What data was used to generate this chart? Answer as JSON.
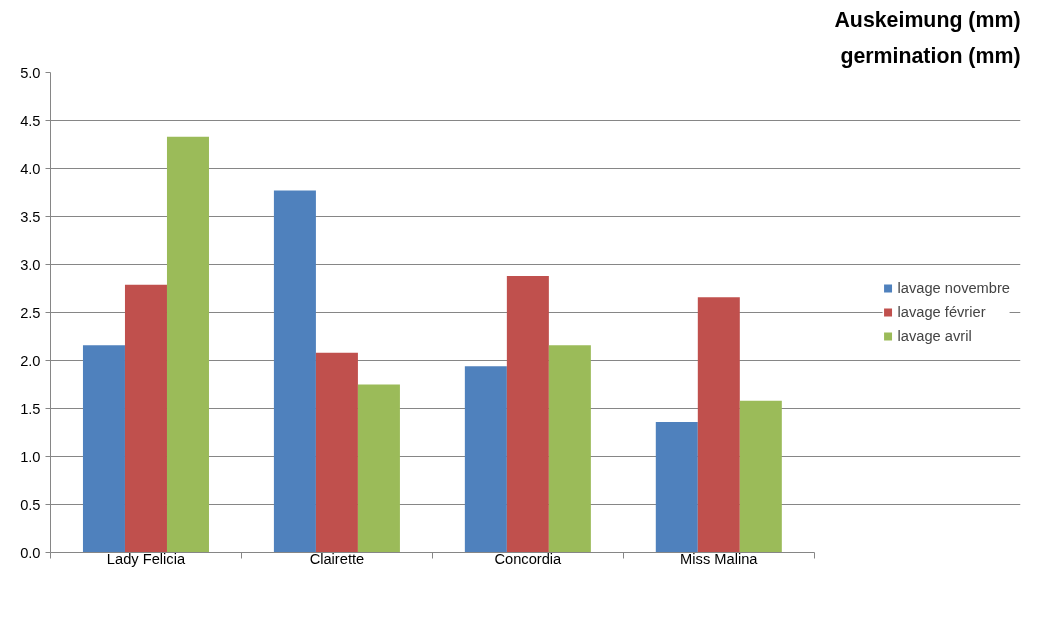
{
  "chart_data": {
    "type": "bar",
    "title": "Auskeimung (mm)",
    "subtitle": "germination (mm)",
    "categories": [
      "Lady Felicia",
      "Clairette",
      "Concordia",
      "Miss Malina"
    ],
    "series": [
      {
        "name": "lavage novembre",
        "color": "#4f81bd",
        "values": [
          2.16,
          3.77,
          1.94,
          1.36
        ]
      },
      {
        "name": "lavage février",
        "color": "#c0504d",
        "values": [
          2.79,
          2.08,
          2.88,
          2.66
        ]
      },
      {
        "name": "lavage avril",
        "color": "#9bbb59",
        "values": [
          4.33,
          1.75,
          2.16,
          1.58
        ]
      }
    ],
    "ylim": [
      0,
      5
    ],
    "yticks": [
      {
        "value": 0,
        "label": "0.0"
      },
      {
        "value": 0.5,
        "label": "0.5"
      },
      {
        "value": 1,
        "label": "1.0"
      },
      {
        "value": 1.5,
        "label": "1.5"
      },
      {
        "value": 2,
        "label": "2.0"
      },
      {
        "value": 2.5,
        "label": "2.5"
      },
      {
        "value": 3,
        "label": "3.0"
      },
      {
        "value": 3.5,
        "label": "3.5"
      },
      {
        "value": 4,
        "label": "4.0"
      },
      {
        "value": 4.5,
        "label": "4.5"
      },
      {
        "value": 5,
        "label": "5.0"
      }
    ],
    "grid": "y",
    "legend": "right"
  }
}
